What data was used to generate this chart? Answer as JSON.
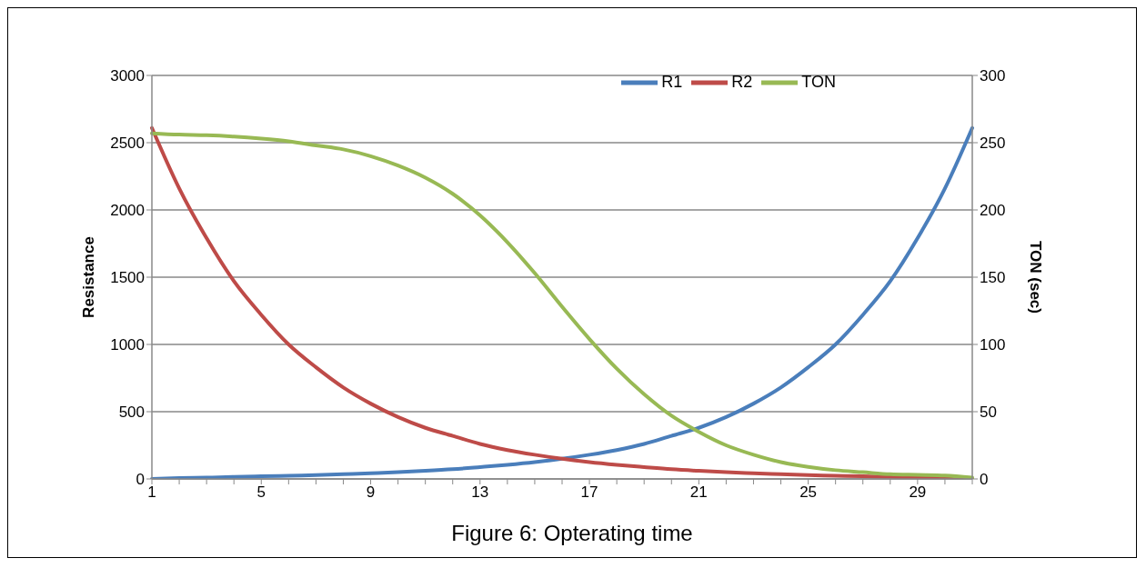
{
  "chart_data": {
    "type": "line",
    "title": "Figure 6: Opterating time",
    "ylabel": "Resistance",
    "y2label": "TON (sec)",
    "categories": [
      "1",
      null,
      null,
      null,
      "5",
      null,
      null,
      null,
      "9",
      null,
      null,
      null,
      "13",
      null,
      null,
      null,
      "17",
      null,
      null,
      null,
      "21",
      null,
      null,
      null,
      "25",
      null,
      null,
      null,
      "29",
      null,
      null
    ],
    "series": [
      {
        "name": "R1",
        "color": "#4a7ebb",
        "values": [
          0,
          6,
          10,
          15,
          20,
          24,
          28,
          35,
          42,
          50,
          60,
          72,
          88,
          105,
          125,
          150,
          180,
          215,
          260,
          320,
          380,
          460,
          560,
          680,
          830,
          1000,
          1220,
          1470,
          1790,
          2160,
          2610
        ]
      },
      {
        "name": "R2",
        "color": "#be4b48",
        "values": [
          2610,
          2160,
          1790,
          1470,
          1220,
          1000,
          830,
          680,
          560,
          460,
          380,
          320,
          260,
          215,
          180,
          150,
          125,
          105,
          88,
          72,
          60,
          50,
          42,
          35,
          28,
          24,
          20,
          15,
          10,
          6,
          0
        ]
      },
      {
        "name": "TON",
        "color": "#98b954",
        "axis": "y2",
        "values": [
          257,
          256,
          255.5,
          254.5,
          253,
          251,
          248,
          245,
          240,
          233,
          224,
          212,
          196,
          176,
          153,
          128,
          104,
          82,
          63,
          47,
          35,
          25,
          18,
          12.5,
          9,
          6.5,
          5,
          3.5,
          3,
          2.5,
          1
        ]
      }
    ],
    "ylim": [
      0,
      3000
    ],
    "yticks": [
      0,
      500,
      1000,
      1500,
      2000,
      2500,
      3000
    ],
    "y2lim": [
      0,
      300
    ],
    "y2ticks": [
      0,
      50,
      100,
      150,
      200,
      250,
      300
    ],
    "grid": "y",
    "legend": "top right",
    "marker": "none",
    "line_style": "solid"
  }
}
